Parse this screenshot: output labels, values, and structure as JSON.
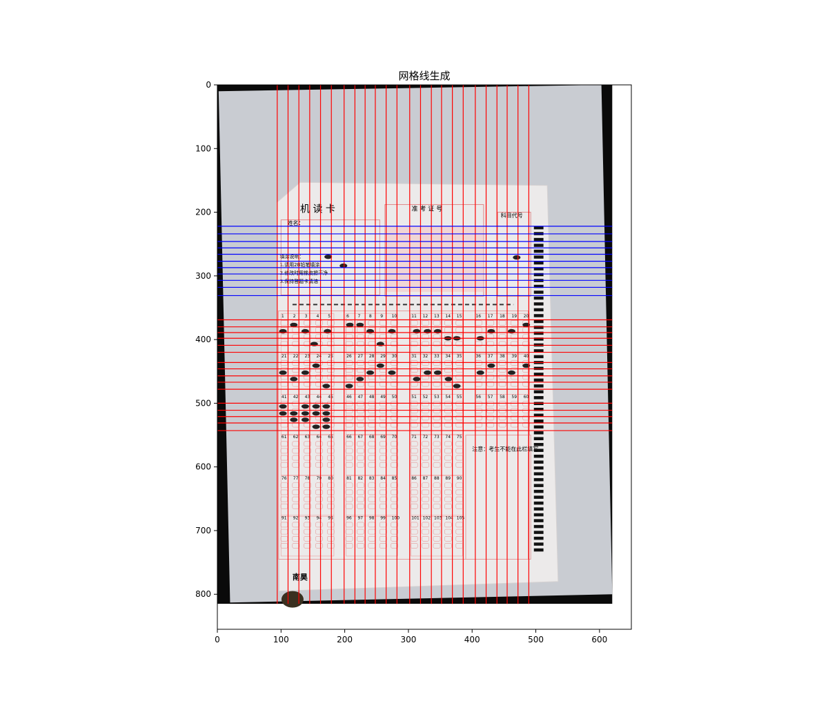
{
  "chart_data": {
    "type": "image",
    "title": "网格线生成",
    "xlabel": "",
    "ylabel": "",
    "xlim": [
      0,
      650
    ],
    "ylim": [
      855,
      0
    ],
    "xticks": [
      0,
      100,
      200,
      300,
      400,
      500,
      600
    ],
    "yticks": [
      0,
      100,
      200,
      300,
      400,
      500,
      600,
      700,
      800
    ],
    "image_extent": {
      "width": 620,
      "height": 815
    },
    "grid": false,
    "series": [
      {
        "color": "#ff0000",
        "orientation": "vertical",
        "y_range": [
          0,
          815
        ],
        "x": [
          94,
          111,
          128,
          145,
          162,
          179,
          199,
          216,
          232,
          248,
          265,
          282,
          302,
          319,
          336,
          352,
          369,
          386,
          405,
          422,
          439,
          455,
          472,
          489
        ]
      },
      {
        "color": "#0000ff",
        "orientation": "horizontal",
        "x_range": [
          0,
          620
        ],
        "y": [
          222,
          234,
          246,
          256,
          266,
          277,
          287,
          297,
          307,
          318,
          331
        ]
      },
      {
        "color": "#ff0000",
        "orientation": "horizontal",
        "x_range": [
          0,
          620
        ],
        "y": [
          369,
          380,
          389,
          398,
          409,
          420,
          436,
          446,
          457,
          467,
          478,
          500,
          511,
          521,
          531,
          543
        ]
      }
    ]
  },
  "sheet": {
    "header_left": "机 读 卡",
    "header_right": "准 考 证 号",
    "subject_label": "科目代号",
    "name_label": "姓名：",
    "instructions": [
      "填涂说明：",
      "1.请用2B铅笔填涂",
      "2.修改时用橡皮擦干净",
      "3.保持答题卡清洁"
    ],
    "footer_brand": "南昊",
    "footer_note": "注意：考生不能在此栏填写",
    "question_numbers": [
      "1",
      "2",
      "3",
      "4",
      "5",
      "6",
      "7",
      "8",
      "9",
      "10",
      "11",
      "12",
      "13",
      "14",
      "15",
      "16",
      "17",
      "18",
      "19",
      "20",
      "21",
      "22",
      "23",
      "24",
      "25",
      "26",
      "27",
      "28",
      "29",
      "30",
      "31",
      "32",
      "33",
      "34",
      "35",
      "36",
      "37",
      "38",
      "39",
      "40",
      "41",
      "42",
      "43",
      "44",
      "45",
      "46",
      "47",
      "48",
      "49",
      "50",
      "51",
      "52",
      "53",
      "54",
      "55",
      "56",
      "57",
      "58",
      "59",
      "60",
      "61",
      "62",
      "63",
      "64",
      "65",
      "66",
      "67",
      "68",
      "69",
      "70",
      "71",
      "72",
      "73",
      "74",
      "75",
      "76",
      "77",
      "78",
      "79",
      "80",
      "81",
      "82",
      "83",
      "84",
      "85",
      "86",
      "87",
      "88",
      "89",
      "90",
      "91",
      "92",
      "93",
      "94",
      "95",
      "96",
      "97",
      "98",
      "99",
      "100",
      "101",
      "102",
      "103",
      "104",
      "105"
    ]
  }
}
